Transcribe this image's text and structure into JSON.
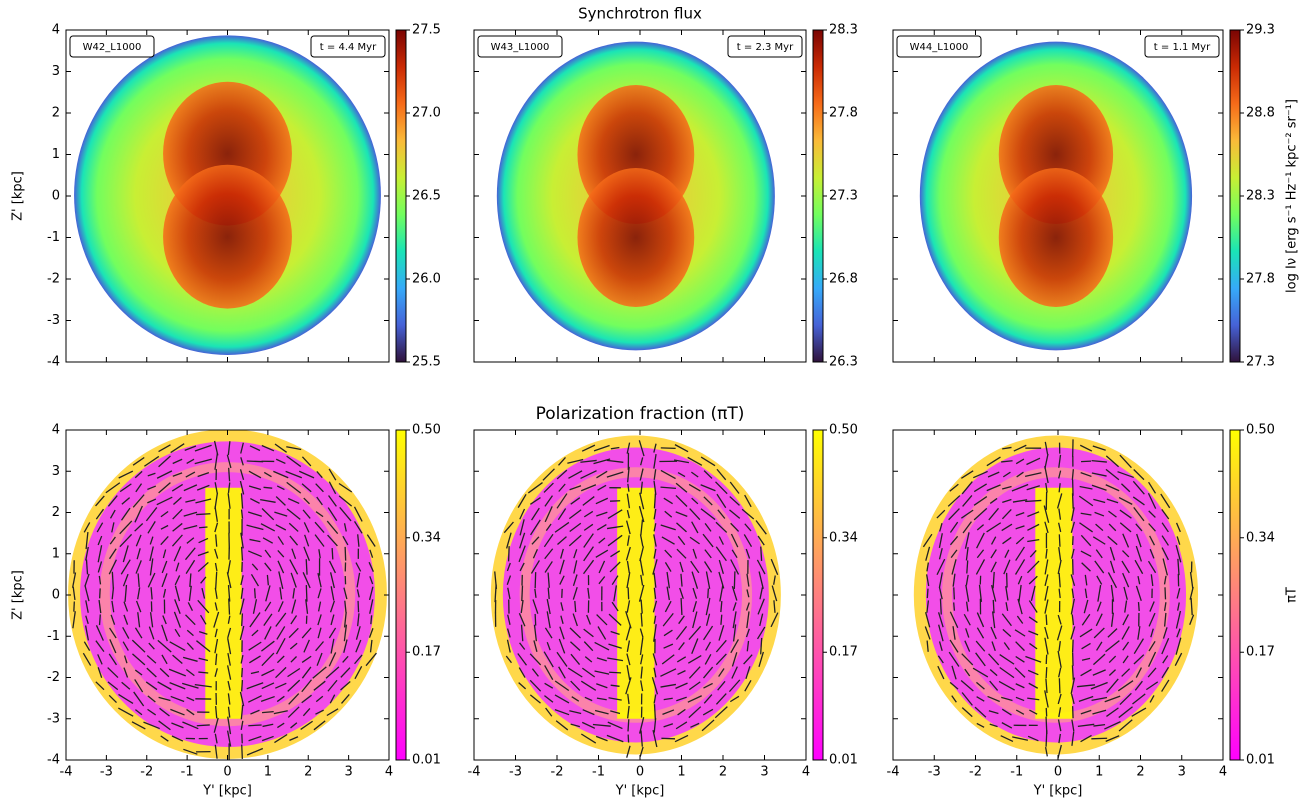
{
  "chart_data": [
    {
      "type": "heatmap",
      "run": "W42_L1000",
      "time": "t = 4.4 Myr",
      "xlim": [
        -4,
        4
      ],
      "ylim": [
        -4,
        4
      ],
      "xticks": [
        -4,
        -3,
        -2,
        -1,
        0,
        1,
        2,
        3,
        4
      ],
      "yticks": [
        -4,
        -3,
        -2,
        -1,
        0,
        1,
        2,
        3,
        4
      ],
      "show_xticklabels": false,
      "show_yticklabels": true,
      "ylabel": "Z' [kpc]",
      "colormap": "turbo",
      "clim": [
        25.5,
        27.5
      ],
      "cticks": [
        25.5,
        {
          "value": 26,
          "label": "26.0"
        },
        26.5,
        {
          "value": 27,
          "label": "27.0"
        },
        27.5
      ]
    },
    {
      "type": "heatmap",
      "title": "Synchrotron flux",
      "run": "W43_L1000",
      "time": "t = 2.3 Myr",
      "xlim": [
        -4,
        4
      ],
      "ylim": [
        -4,
        4
      ],
      "xticks": [
        -4,
        -3,
        -2,
        -1,
        0,
        1,
        2,
        3,
        4
      ],
      "yticks": [
        -4,
        -3,
        -2,
        -1,
        0,
        1,
        2,
        3,
        4
      ],
      "show_xticklabels": false,
      "show_yticklabels": false,
      "colormap": "turbo",
      "clim": [
        26.3,
        28.3
      ],
      "cticks": [
        26.3,
        26.8,
        27.3,
        27.8,
        28.3
      ]
    },
    {
      "type": "heatmap",
      "run": "W44_L1000",
      "time": "t = 1.1 Myr",
      "xlim": [
        -4,
        4
      ],
      "ylim": [
        -4,
        4
      ],
      "xticks": [
        -4,
        -3,
        -2,
        -1,
        0,
        1,
        2,
        3,
        4
      ],
      "yticks": [
        -4,
        -3,
        -2,
        -1,
        0,
        1,
        2,
        3,
        4
      ],
      "show_xticklabels": false,
      "show_yticklabels": false,
      "colormap": "turbo",
      "clim": [
        27.3,
        29.3
      ],
      "cticks": [
        27.3,
        27.8,
        28.3,
        28.8,
        29.3
      ],
      "colorbar_label": "log Iν [erg s⁻¹ Hz⁻¹ kpc⁻² sr⁻¹]"
    },
    {
      "type": "heatmap",
      "xlabel": "Y' [kpc]",
      "ylabel": "Z' [kpc]",
      "xlim": [
        -4,
        4
      ],
      "ylim": [
        -4,
        4
      ],
      "xticks": [
        -4,
        -3,
        -2,
        -1,
        0,
        1,
        2,
        3,
        4
      ],
      "yticks": [
        -4,
        -3,
        -2,
        -1,
        0,
        1,
        2,
        3,
        4
      ],
      "show_xticklabels": true,
      "show_yticklabels": true,
      "colormap": "spring",
      "clim": [
        0.01,
        0.5
      ],
      "cticks": [
        0.01,
        0.17,
        0.34,
        {
          "value": 0.5,
          "label": "0.50"
        }
      ]
    },
    {
      "type": "heatmap",
      "title": "Polarization fraction (πT)",
      "xlabel": "Y' [kpc]",
      "xlim": [
        -4,
        4
      ],
      "ylim": [
        -4,
        4
      ],
      "xticks": [
        -4,
        -3,
        -2,
        -1,
        0,
        1,
        2,
        3,
        4
      ],
      "yticks": [
        -4,
        -3,
        -2,
        -1,
        0,
        1,
        2,
        3,
        4
      ],
      "show_xticklabels": true,
      "show_yticklabels": false,
      "colormap": "spring",
      "clim": [
        0.01,
        0.5
      ],
      "cticks": [
        0.01,
        0.17,
        0.34,
        {
          "value": 0.5,
          "label": "0.50"
        }
      ]
    },
    {
      "type": "heatmap",
      "xlabel": "Y' [kpc]",
      "xlim": [
        -4,
        4
      ],
      "ylim": [
        -4,
        4
      ],
      "xticks": [
        -4,
        -3,
        -2,
        -1,
        0,
        1,
        2,
        3,
        4
      ],
      "yticks": [
        -4,
        -3,
        -2,
        -1,
        0,
        1,
        2,
        3,
        4
      ],
      "show_xticklabels": true,
      "show_yticklabels": false,
      "colormap": "spring",
      "clim": [
        0.01,
        0.5
      ],
      "cticks": [
        0.01,
        0.17,
        0.34,
        {
          "value": 0.5,
          "label": "0.50"
        }
      ],
      "colorbar_label": "πT"
    }
  ]
}
